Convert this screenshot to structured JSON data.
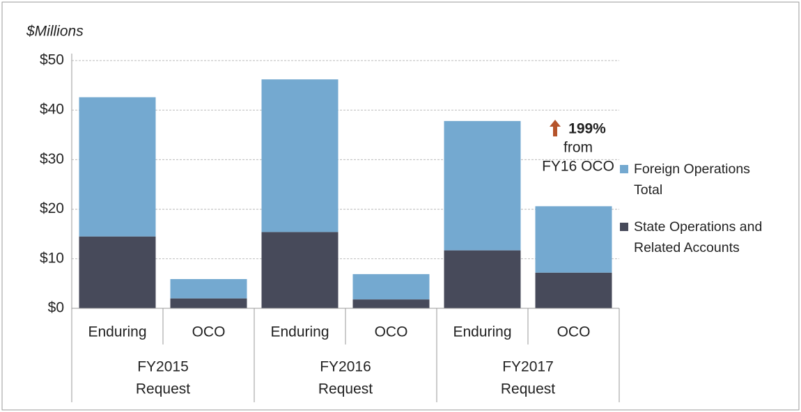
{
  "chart_data": {
    "type": "stacked_bar",
    "y_label": "$Millions",
    "categories": [
      "Enduring",
      "OCO",
      "Enduring",
      "OCO",
      "Enduring",
      "OCO"
    ],
    "groups": [
      [
        "FY2015",
        "Request"
      ],
      [
        "FY2016",
        "Request"
      ],
      [
        "FY2017",
        "Request"
      ]
    ],
    "series": [
      {
        "name": "State Operations and Related Accounts",
        "color": "#474a5a",
        "values": [
          14.5,
          2.0,
          15.4,
          1.8,
          11.7,
          7.2
        ]
      },
      {
        "name": "Foreign Operations Total",
        "color": "#74a9d0",
        "values": [
          28.1,
          3.9,
          30.8,
          5.1,
          26.1,
          13.4
        ]
      }
    ],
    "ylim": [
      0,
      50
    ],
    "yticks": [
      {
        "value": 0,
        "label": "$0"
      },
      {
        "value": 10,
        "label": "$10"
      },
      {
        "value": 20,
        "label": "$20"
      },
      {
        "value": 30,
        "label": "$30"
      },
      {
        "value": 40,
        "label": "$40"
      },
      {
        "value": 50,
        "label": "$50"
      }
    ],
    "grid": true,
    "annotation": {
      "lines": [
        "199%",
        "from",
        "FY16 OCO"
      ],
      "color": "#b5532a"
    }
  }
}
